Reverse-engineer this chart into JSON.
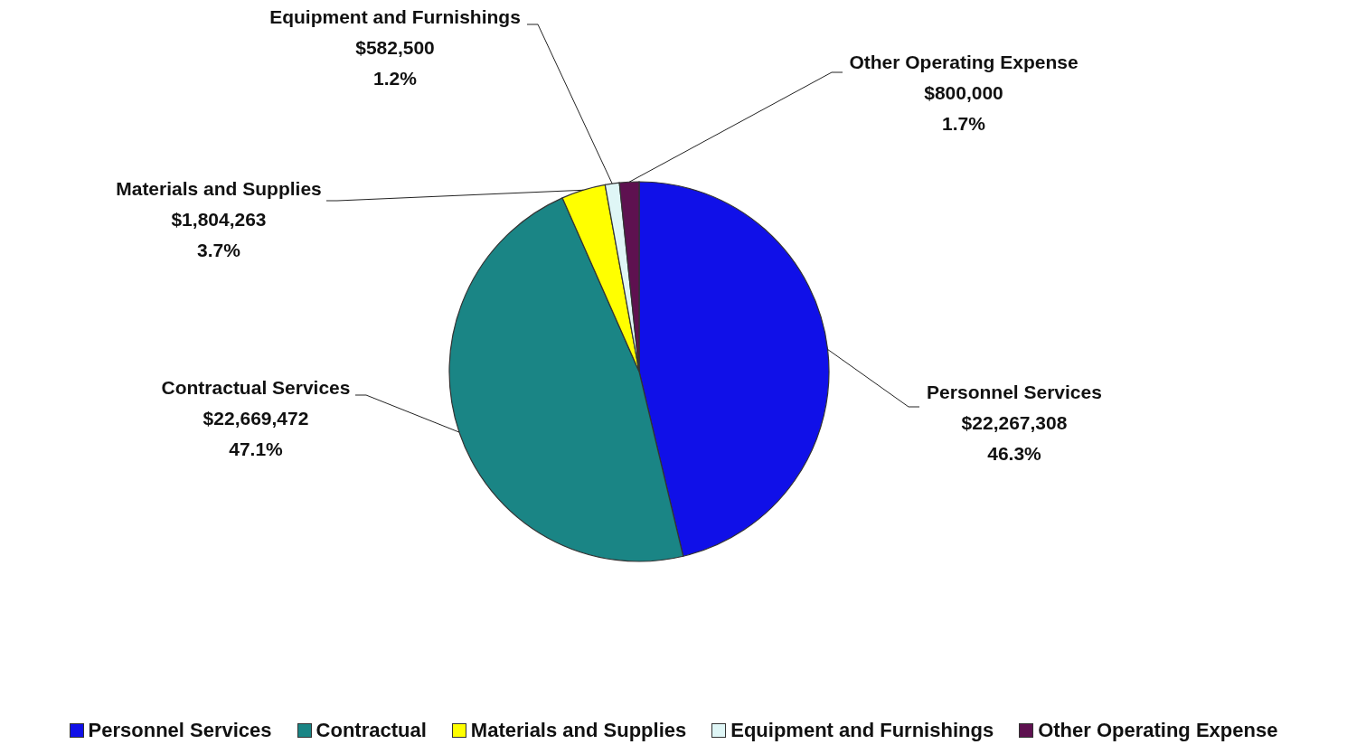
{
  "chart_data": {
    "type": "pie",
    "categories": [
      "Personnel Services",
      "Contractual",
      "Materials and Supplies",
      "Equipment and Furnishings",
      "Other Operating Expense"
    ],
    "values": [
      22267308,
      22669472,
      1804263,
      582500,
      800000
    ],
    "colors": [
      "#1010e8",
      "#1a8585",
      "#ffff00",
      "#dff6f6",
      "#5e1150"
    ],
    "value_labels": [
      "Personnel Services\n$22,267,308\n46.3%",
      "Contractual Services\n$22,669,472\n47.1%",
      "Materials and Supplies\n$1,804,263\n3.7%",
      "Equipment and Furnishings\n$582,500\n1.2%",
      "Other Operating Expense\n$800,000\n1.7%"
    ],
    "legend": "bottom"
  }
}
